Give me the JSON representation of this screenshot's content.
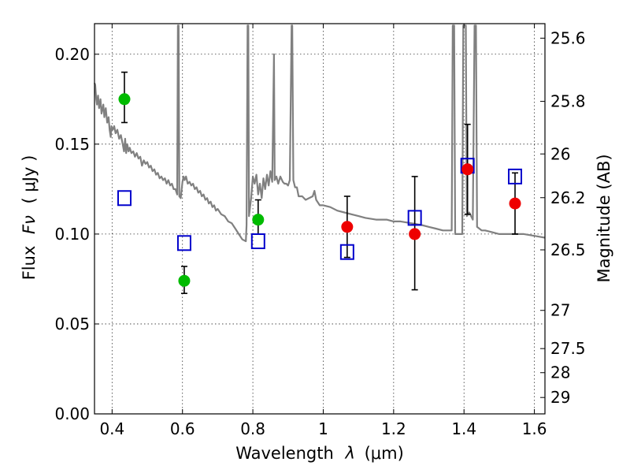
{
  "chart_data": {
    "type": "scatter",
    "xlabel_prefix": "Wavelength",
    "xlabel_symbol": "λ",
    "xlabel_unit": "(μm)",
    "ylabel_prefix": "Flux",
    "ylabel_symbol": "Fν",
    "ylabel_unit": "( μJy )",
    "y2label": "Magnitude (AB)",
    "xlim": [
      0.35,
      1.63
    ],
    "ylim": [
      0.0,
      0.217
    ],
    "x_ticks": [
      {
        "value": 0.4,
        "label": "0.4"
      },
      {
        "value": 0.6,
        "label": "0.6"
      },
      {
        "value": 0.8,
        "label": "0.8"
      },
      {
        "value": 1.0,
        "label": "1"
      },
      {
        "value": 1.2,
        "label": "1.2"
      },
      {
        "value": 1.4,
        "label": "1.4"
      },
      {
        "value": 1.6,
        "label": "1.6"
      }
    ],
    "y_ticks": [
      {
        "value": 0.0,
        "label": "0.00"
      },
      {
        "value": 0.05,
        "label": "0.05"
      },
      {
        "value": 0.1,
        "label": "0.10"
      },
      {
        "value": 0.15,
        "label": "0.15"
      },
      {
        "value": 0.2,
        "label": "0.20"
      }
    ],
    "y2_ticks": [
      {
        "label": "25.6"
      },
      {
        "label": "25.8"
      },
      {
        "label": "26"
      },
      {
        "label": "26.2"
      },
      {
        "label": "26.5"
      },
      {
        "label": "27"
      },
      {
        "label": "27.5"
      },
      {
        "label": "28"
      },
      {
        "label": "29"
      }
    ],
    "grid": true,
    "colors": {
      "model": "#808080",
      "optical": "#00bb00",
      "infrared": "#ee0000",
      "model_photometry": "#0000cc",
      "errorbar": "#000000"
    },
    "model_spectrum": [
      [
        0.35,
        0.184
      ],
      [
        0.352,
        0.183
      ],
      [
        0.355,
        0.175
      ],
      [
        0.357,
        0.172
      ],
      [
        0.36,
        0.177
      ],
      [
        0.363,
        0.17
      ],
      [
        0.367,
        0.175
      ],
      [
        0.37,
        0.167
      ],
      [
        0.375,
        0.172
      ],
      [
        0.378,
        0.165
      ],
      [
        0.382,
        0.17
      ],
      [
        0.386,
        0.162
      ],
      [
        0.39,
        0.165
      ],
      [
        0.393,
        0.158
      ],
      [
        0.396,
        0.154
      ],
      [
        0.398,
        0.16
      ],
      [
        0.402,
        0.158
      ],
      [
        0.406,
        0.16
      ],
      [
        0.41,
        0.156
      ],
      [
        0.415,
        0.158
      ],
      [
        0.42,
        0.153
      ],
      [
        0.425,
        0.155
      ],
      [
        0.43,
        0.15
      ],
      [
        0.434,
        0.146
      ],
      [
        0.437,
        0.153
      ],
      [
        0.44,
        0.145
      ],
      [
        0.443,
        0.15
      ],
      [
        0.447,
        0.146
      ],
      [
        0.45,
        0.148
      ],
      [
        0.455,
        0.145
      ],
      [
        0.46,
        0.146
      ],
      [
        0.465,
        0.143
      ],
      [
        0.47,
        0.145
      ],
      [
        0.475,
        0.142
      ],
      [
        0.48,
        0.143
      ],
      [
        0.485,
        0.138
      ],
      [
        0.49,
        0.141
      ],
      [
        0.495,
        0.139
      ],
      [
        0.5,
        0.14
      ],
      [
        0.505,
        0.137
      ],
      [
        0.51,
        0.138
      ],
      [
        0.515,
        0.135
      ],
      [
        0.52,
        0.136
      ],
      [
        0.525,
        0.133
      ],
      [
        0.53,
        0.134
      ],
      [
        0.535,
        0.131
      ],
      [
        0.54,
        0.132
      ],
      [
        0.545,
        0.13
      ],
      [
        0.55,
        0.131
      ],
      [
        0.555,
        0.128
      ],
      [
        0.56,
        0.13
      ],
      [
        0.565,
        0.127
      ],
      [
        0.57,
        0.128
      ],
      [
        0.575,
        0.125
      ],
      [
        0.58,
        0.125
      ],
      [
        0.585,
        0.122
      ],
      [
        0.587,
        0.216
      ],
      [
        0.589,
        0.216
      ],
      [
        0.591,
        0.121
      ],
      [
        0.595,
        0.12
      ],
      [
        0.6,
        0.129
      ],
      [
        0.603,
        0.132
      ],
      [
        0.606,
        0.13
      ],
      [
        0.61,
        0.132
      ],
      [
        0.615,
        0.128
      ],
      [
        0.62,
        0.129
      ],
      [
        0.625,
        0.127
      ],
      [
        0.63,
        0.128
      ],
      [
        0.635,
        0.125
      ],
      [
        0.64,
        0.126
      ],
      [
        0.645,
        0.123
      ],
      [
        0.65,
        0.124
      ],
      [
        0.655,
        0.121
      ],
      [
        0.66,
        0.122
      ],
      [
        0.665,
        0.119
      ],
      [
        0.67,
        0.12
      ],
      [
        0.675,
        0.117
      ],
      [
        0.68,
        0.118
      ],
      [
        0.685,
        0.115
      ],
      [
        0.69,
        0.116
      ],
      [
        0.695,
        0.113
      ],
      [
        0.7,
        0.114
      ],
      [
        0.71,
        0.111
      ],
      [
        0.72,
        0.11
      ],
      [
        0.73,
        0.107
      ],
      [
        0.74,
        0.106
      ],
      [
        0.75,
        0.103
      ],
      [
        0.76,
        0.1
      ],
      [
        0.77,
        0.097
      ],
      [
        0.78,
        0.096
      ],
      [
        0.782,
        0.105
      ],
      [
        0.785,
        0.216
      ],
      [
        0.787,
        0.216
      ],
      [
        0.789,
        0.11
      ],
      [
        0.795,
        0.12
      ],
      [
        0.8,
        0.132
      ],
      [
        0.805,
        0.128
      ],
      [
        0.81,
        0.133
      ],
      [
        0.815,
        0.122
      ],
      [
        0.82,
        0.128
      ],
      [
        0.825,
        0.12
      ],
      [
        0.83,
        0.131
      ],
      [
        0.835,
        0.125
      ],
      [
        0.84,
        0.133
      ],
      [
        0.845,
        0.127
      ],
      [
        0.85,
        0.135
      ],
      [
        0.855,
        0.129
      ],
      [
        0.86,
        0.2
      ],
      [
        0.862,
        0.13
      ],
      [
        0.867,
        0.132
      ],
      [
        0.872,
        0.128
      ],
      [
        0.878,
        0.132
      ],
      [
        0.885,
        0.129
      ],
      [
        0.89,
        0.128
      ],
      [
        0.895,
        0.128
      ],
      [
        0.9,
        0.127
      ],
      [
        0.905,
        0.13
      ],
      [
        0.91,
        0.216
      ],
      [
        0.912,
        0.216
      ],
      [
        0.915,
        0.13
      ],
      [
        0.92,
        0.126
      ],
      [
        0.925,
        0.126
      ],
      [
        0.93,
        0.121
      ],
      [
        0.94,
        0.121
      ],
      [
        0.95,
        0.119
      ],
      [
        0.96,
        0.12
      ],
      [
        0.97,
        0.121
      ],
      [
        0.975,
        0.124
      ],
      [
        0.98,
        0.119
      ],
      [
        0.99,
        0.116
      ],
      [
        1.0,
        0.116
      ],
      [
        1.02,
        0.115
      ],
      [
        1.04,
        0.113
      ],
      [
        1.06,
        0.112
      ],
      [
        1.08,
        0.111
      ],
      [
        1.1,
        0.11
      ],
      [
        1.12,
        0.109
      ],
      [
        1.15,
        0.108
      ],
      [
        1.18,
        0.108
      ],
      [
        1.2,
        0.107
      ],
      [
        1.22,
        0.107
      ],
      [
        1.25,
        0.106
      ],
      [
        1.28,
        0.105
      ],
      [
        1.3,
        0.104
      ],
      [
        1.32,
        0.103
      ],
      [
        1.34,
        0.102
      ],
      [
        1.365,
        0.102
      ],
      [
        1.368,
        0.216
      ],
      [
        1.372,
        0.216
      ],
      [
        1.375,
        0.1
      ],
      [
        1.395,
        0.1
      ],
      [
        1.398,
        0.216
      ],
      [
        1.405,
        0.216
      ],
      [
        1.408,
        0.11
      ],
      [
        1.415,
        0.112
      ],
      [
        1.425,
        0.108
      ],
      [
        1.43,
        0.216
      ],
      [
        1.434,
        0.216
      ],
      [
        1.437,
        0.104
      ],
      [
        1.45,
        0.102
      ],
      [
        1.46,
        0.102
      ],
      [
        1.48,
        0.101
      ],
      [
        1.5,
        0.1
      ],
      [
        1.53,
        0.1
      ],
      [
        1.55,
        0.1
      ],
      [
        1.57,
        0.1
      ],
      [
        1.6,
        0.099
      ],
      [
        1.63,
        0.098
      ]
    ],
    "optical_points": [
      {
        "x": 0.435,
        "y": 0.175,
        "err_lo": 0.013,
        "err_hi": 0.015
      },
      {
        "x": 0.605,
        "y": 0.074,
        "err_lo": 0.007,
        "err_hi": 0.008
      },
      {
        "x": 0.815,
        "y": 0.108,
        "err_lo": 0.008,
        "err_hi": 0.011
      }
    ],
    "infrared_points": [
      {
        "x": 1.068,
        "y": 0.104,
        "err_lo": 0.017,
        "err_hi": 0.017
      },
      {
        "x": 1.26,
        "y": 0.1,
        "err_lo": 0.031,
        "err_hi": 0.032
      },
      {
        "x": 1.41,
        "y": 0.136,
        "err_lo": 0.025,
        "err_hi": 0.025
      },
      {
        "x": 1.545,
        "y": 0.117,
        "err_lo": 0.017,
        "err_hi": 0.017
      }
    ],
    "model_photometry": [
      {
        "x": 0.435,
        "y": 0.12
      },
      {
        "x": 0.605,
        "y": 0.095
      },
      {
        "x": 0.815,
        "y": 0.096
      },
      {
        "x": 1.068,
        "y": 0.09
      },
      {
        "x": 1.26,
        "y": 0.109
      },
      {
        "x": 1.41,
        "y": 0.138
      },
      {
        "x": 1.545,
        "y": 0.132
      }
    ]
  }
}
